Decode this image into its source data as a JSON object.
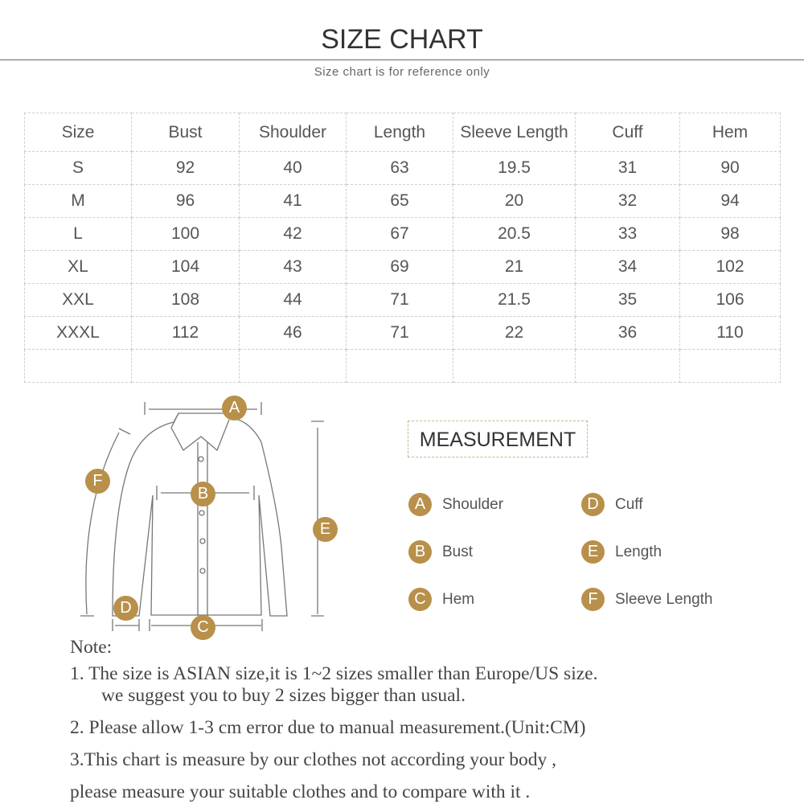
{
  "title": "SIZE CHART",
  "subtitle": "Size chart is for reference only",
  "table": {
    "headers": [
      "Size",
      "Bust",
      "Shoulder",
      "Length",
      "Sleeve Length",
      "Cuff",
      "Hem"
    ],
    "rows": [
      [
        "S",
        "92",
        "40",
        "63",
        "19.5",
        "31",
        "90"
      ],
      [
        "M",
        "96",
        "41",
        "65",
        "20",
        "32",
        "94"
      ],
      [
        "L",
        "100",
        "42",
        "67",
        "20.5",
        "33",
        "98"
      ],
      [
        "XL",
        "104",
        "43",
        "69",
        "21",
        "34",
        "102"
      ],
      [
        "XXL",
        "108",
        "44",
        "71",
        "21.5",
        "35",
        "106"
      ],
      [
        "XXXL",
        "112",
        "46",
        "71",
        "22",
        "36",
        "110"
      ],
      [
        "",
        "",
        "",
        "",
        "",
        "",
        ""
      ]
    ]
  },
  "measurement": {
    "title": "MEASUREMENT",
    "items": [
      {
        "letter": "A",
        "label": "Shoulder"
      },
      {
        "letter": "D",
        "label": "Cuff"
      },
      {
        "letter": "B",
        "label": "Bust"
      },
      {
        "letter": "E",
        "label": "Length"
      },
      {
        "letter": "C",
        "label": "Hem"
      },
      {
        "letter": "F",
        "label": "Sleeve Length"
      }
    ]
  },
  "accent_color": "#b8904a",
  "notes": {
    "heading": "Note:",
    "n1a": "1.  The size is ASIAN size,it is 1~2 sizes smaller than Europe/US size.",
    "n1b": "we suggest you to buy 2 sizes bigger than usual.",
    "n2": "2.  Please allow 1-3 cm error due to manual measurement.(Unit:CM)",
    "n3a": "3.This chart is measure by our clothes not according your body ,",
    "n3b": "please measure your suitable clothes and to compare with it ."
  }
}
